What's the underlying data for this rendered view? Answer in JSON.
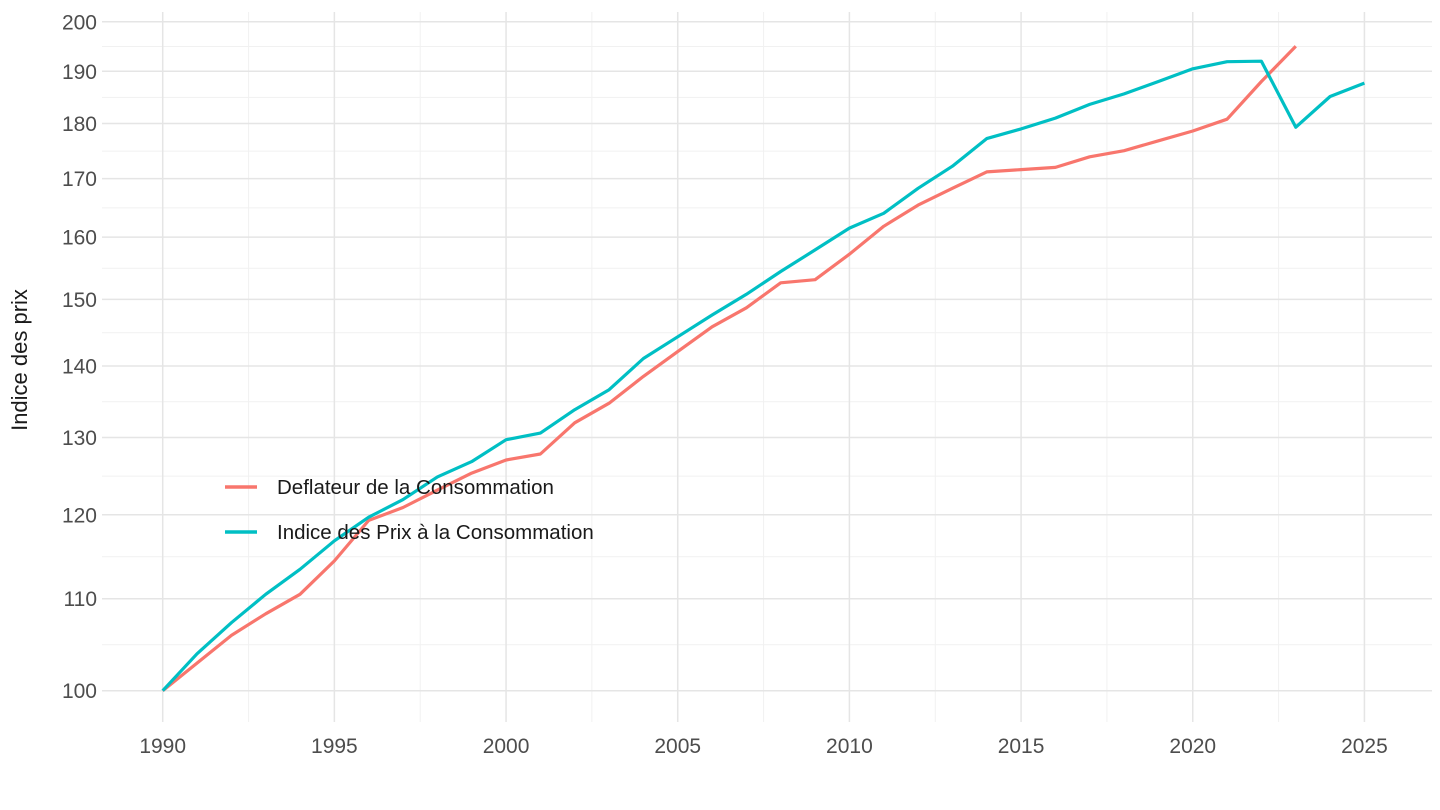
{
  "chart_data": {
    "type": "line",
    "title": "",
    "xlabel": "",
    "ylabel": "Indice des prix",
    "y_scale": "log10",
    "grid": true,
    "legend_position": "inside-left",
    "x_ticks": [
      1990,
      1995,
      2000,
      2005,
      2010,
      2015,
      2020,
      2025
    ],
    "y_ticks": [
      100,
      110,
      120,
      130,
      140,
      150,
      160,
      170,
      180,
      190,
      200
    ],
    "x_range": [
      1990,
      2025
    ],
    "y_range_approx": [
      96,
      203
    ],
    "colors": {
      "deflateur": "#F8766D",
      "ipc": "#00BFC4",
      "grid_major": "#E5E5E5",
      "grid_minor": "#F1F1F1",
      "tick_text": "#4D4D4D",
      "axis_title_text": "#1A1A1A",
      "legend_text": "#1A1A1A"
    },
    "series": [
      {
        "name": "Deflateur de la Consommation",
        "color_key": "deflateur",
        "x": [
          1990,
          1991,
          1992,
          1993,
          1994,
          1995,
          1996,
          1997,
          1998,
          1999,
          2000,
          2001,
          2002,
          2003,
          2004,
          2005,
          2006,
          2007,
          2008,
          2009,
          2010,
          2011,
          2012,
          2013,
          2014,
          2015,
          2016,
          2017,
          2018,
          2019,
          2020,
          2021,
          2022,
          2023
        ],
        "values": [
          100,
          102.9,
          105.9,
          108.3,
          110.5,
          114.4,
          119.3,
          120.9,
          123.1,
          125.3,
          127.0,
          127.8,
          132.0,
          134.7,
          138.5,
          142.1,
          145.8,
          148.7,
          152.6,
          153.1,
          157.2,
          161.8,
          165.4,
          168.3,
          171.2,
          171.6,
          172.0,
          173.9,
          175.0,
          176.8,
          178.6,
          180.8,
          188.0,
          195.0
        ]
      },
      {
        "name": "Indice des Prix à la Consommation",
        "color_key": "ipc",
        "x": [
          1990,
          1991,
          1992,
          1993,
          1994,
          1995,
          1996,
          1997,
          1998,
          1999,
          2000,
          2001,
          2002,
          2003,
          2004,
          2005,
          2006,
          2007,
          2008,
          2009,
          2010,
          2011,
          2012,
          2013,
          2014,
          2015,
          2016,
          2017,
          2018,
          2019,
          2020,
          2021,
          2022,
          2023,
          2024,
          2025
        ],
        "values": [
          100,
          103.9,
          107.3,
          110.5,
          113.4,
          116.8,
          119.7,
          121.9,
          124.8,
          126.8,
          129.7,
          130.6,
          133.8,
          136.6,
          141.1,
          144.3,
          147.6,
          150.8,
          154.4,
          157.9,
          161.5,
          164.0,
          168.3,
          172.2,
          177.2,
          179.0,
          181.0,
          183.6,
          185.6,
          188.0,
          190.5,
          191.9,
          192.0,
          179.3,
          185.1,
          187.7
        ]
      }
    ]
  }
}
